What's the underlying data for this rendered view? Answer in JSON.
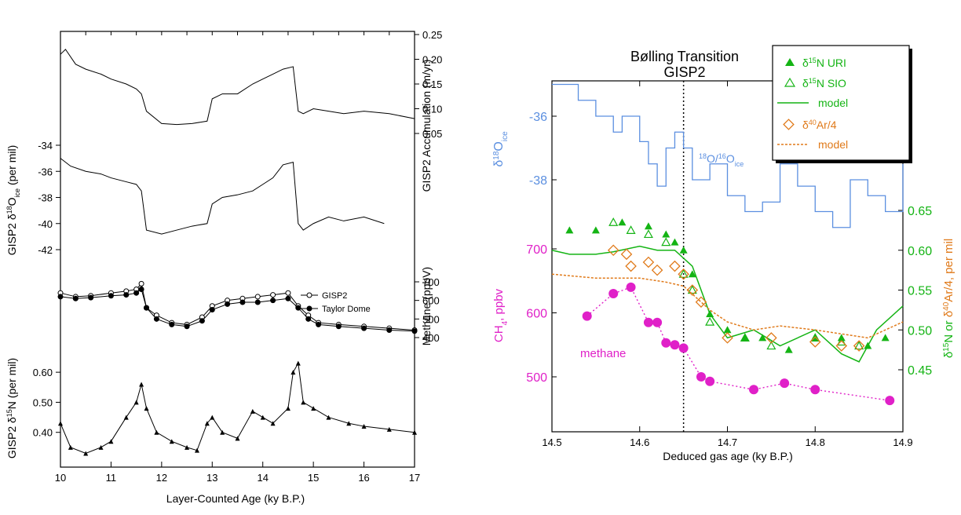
{
  "chart_data": [
    {
      "type": "line",
      "panel": "left",
      "xlabel": "Layer-Counted Age  (ky B.P.)",
      "xlim": [
        10,
        17
      ],
      "xticks": [
        "10",
        "11",
        "12",
        "13",
        "14",
        "15",
        "16",
        "17"
      ],
      "colors": {
        "line": "#000000"
      },
      "subplots": [
        {
          "name": "accumulation",
          "ylabel": "GISP2 Accumulation (m/yr)",
          "ylim": [
            0.05,
            0.25
          ],
          "yticks": [
            "0.25",
            "0.20",
            "0.15",
            "0.10",
            "0.05"
          ],
          "series": [
            {
              "x": [
                10.0,
                10.1,
                10.3,
                10.5,
                10.8,
                11.0,
                11.3,
                11.5,
                11.6,
                11.7,
                12.0,
                12.3,
                12.6,
                12.9,
                13.0,
                13.2,
                13.5,
                13.8,
                14.0,
                14.2,
                14.4,
                14.6,
                14.7,
                14.8,
                15.0,
                15.3,
                15.6,
                16.0,
                16.5,
                17.0
              ],
              "y": [
                0.21,
                0.22,
                0.19,
                0.18,
                0.17,
                0.16,
                0.15,
                0.14,
                0.13,
                0.095,
                0.07,
                0.068,
                0.07,
                0.075,
                0.12,
                0.13,
                0.13,
                0.15,
                0.16,
                0.17,
                0.18,
                0.185,
                0.095,
                0.09,
                0.1,
                0.095,
                0.09,
                0.095,
                0.09,
                0.08
              ]
            }
          ]
        },
        {
          "name": "d18O",
          "ylabel": "GISP2 δ18Oice (per mil)",
          "ylim": [
            -42,
            -34
          ],
          "yticks": [
            "-34",
            "-36",
            "-38",
            "-40",
            "-42"
          ],
          "series": [
            {
              "x": [
                10.0,
                10.2,
                10.5,
                10.8,
                11.0,
                11.3,
                11.5,
                11.6,
                11.7,
                12.0,
                12.3,
                12.6,
                12.9,
                13.0,
                13.2,
                13.5,
                13.8,
                14.0,
                14.2,
                14.4,
                14.6,
                14.7,
                14.8,
                15.0,
                15.3,
                15.6,
                16.0,
                16.4
              ],
              "y": [
                -35,
                -35.6,
                -36,
                -36.2,
                -36.5,
                -36.8,
                -37,
                -37.5,
                -40.5,
                -40.8,
                -40.5,
                -40.2,
                -40,
                -38.5,
                -38,
                -37.8,
                -37.5,
                -37,
                -36.5,
                -35.5,
                -35.3,
                -40,
                -40.5,
                -40,
                -39.5,
                -39.8,
                -39.5,
                -40
              ]
            }
          ]
        },
        {
          "name": "methane",
          "ylabel": "Methane (ppbV)",
          "ylim": [
            400,
            700
          ],
          "yticks": [
            "700",
            "600",
            "500",
            "400"
          ],
          "legend": [
            "GISP2",
            "Taylor Dome"
          ],
          "series": [
            {
              "name": "GISP2",
              "x": [
                10.0,
                10.3,
                10.6,
                11.0,
                11.3,
                11.5,
                11.6,
                11.7,
                11.9,
                12.2,
                12.5,
                12.8,
                13.0,
                13.3,
                13.6,
                13.9,
                14.2,
                14.5,
                14.7,
                14.9,
                15.1,
                15.5,
                16.0,
                16.5,
                17.0
              ],
              "y": [
                640,
                620,
                625,
                640,
                650,
                660,
                690,
                560,
                520,
                480,
                470,
                510,
                570,
                600,
                610,
                620,
                630,
                640,
                570,
                520,
                480,
                470,
                460,
                450,
                440
              ]
            },
            {
              "name": "Taylor Dome",
              "x": [
                10.0,
                10.3,
                10.6,
                11.0,
                11.3,
                11.5,
                11.6,
                11.7,
                11.9,
                12.2,
                12.5,
                12.8,
                13.0,
                13.3,
                13.6,
                13.9,
                14.2,
                14.5,
                14.7,
                14.9,
                15.1,
                15.5,
                16.0,
                16.5,
                17.0
              ],
              "y": [
                620,
                610,
                615,
                625,
                630,
                640,
                660,
                560,
                500,
                470,
                460,
                490,
                550,
                580,
                590,
                590,
                600,
                610,
                560,
                500,
                470,
                460,
                450,
                440,
                435
              ]
            }
          ]
        },
        {
          "name": "d15N",
          "ylabel": "GISP2 δ15N (per mil)",
          "ylim": [
            0.3,
            0.65
          ],
          "yticks": [
            "0.60",
            "0.50",
            "0.40"
          ],
          "series": [
            {
              "x": [
                10.0,
                10.2,
                10.5,
                10.8,
                11.0,
                11.3,
                11.5,
                11.6,
                11.7,
                11.9,
                12.2,
                12.5,
                12.7,
                12.9,
                13.0,
                13.2,
                13.5,
                13.8,
                14.0,
                14.2,
                14.5,
                14.6,
                14.7,
                14.8,
                15.0,
                15.3,
                15.7,
                16.0,
                16.5,
                17.0
              ],
              "y": [
                0.43,
                0.35,
                0.33,
                0.35,
                0.37,
                0.45,
                0.5,
                0.56,
                0.48,
                0.4,
                0.37,
                0.35,
                0.34,
                0.43,
                0.45,
                0.4,
                0.38,
                0.47,
                0.45,
                0.43,
                0.48,
                0.6,
                0.63,
                0.5,
                0.48,
                0.45,
                0.43,
                0.42,
                0.41,
                0.4
              ]
            }
          ]
        }
      ]
    },
    {
      "type": "line",
      "panel": "right",
      "title": "Bølling Transition",
      "subtitle": "GISP2",
      "xlabel": "Deduced gas age (ky B.P.)",
      "xlim": [
        14.5,
        14.9
      ],
      "xticks": [
        "14.5",
        "14.6",
        "14.7",
        "14.8",
        "14.9"
      ],
      "vline_x": 14.65,
      "axes": {
        "left_top": {
          "label": "δ18Oice",
          "ticks": [
            "-36",
            "-38"
          ],
          "color": "#5b8fe0"
        },
        "left_bottom": {
          "label": "CH4, ppbv",
          "ticks": [
            "700",
            "600",
            "500"
          ],
          "color": "#e020c8"
        },
        "right": {
          "label": "δ15N or δ40Ar/4, per mil",
          "ticks": [
            "0.65",
            "0.60",
            "0.55",
            "0.50",
            "0.45"
          ],
          "color_a": "#14b414",
          "color_b": "#e07a1a"
        }
      },
      "legend": [
        "δ15N URI",
        "δ15N SIO",
        "model",
        "δ40Ar/4",
        "model"
      ],
      "annotations": {
        "o_iso": "18O/16Oice",
        "methane": "methane"
      },
      "colors": {
        "o18": "#5b8fe0",
        "ch4": "#e020c8",
        "n15": "#14b414",
        "ar": "#e07a1a"
      },
      "series": [
        {
          "name": "18O/16Oice",
          "x": [
            14.5,
            14.53,
            14.55,
            14.57,
            14.58,
            14.6,
            14.61,
            14.62,
            14.63,
            14.64,
            14.65,
            14.66,
            14.68,
            14.7,
            14.72,
            14.74,
            14.76,
            14.78,
            14.8,
            14.82,
            14.84,
            14.86,
            14.88,
            14.9
          ],
          "y": [
            -35,
            -35.5,
            -36,
            -36.5,
            -36,
            -36.8,
            -37.5,
            -38.2,
            -37,
            -36.5,
            -37,
            -38,
            -37.5,
            -38.5,
            -39,
            -38.7,
            -37.5,
            -38.2,
            -39,
            -39.5,
            -38,
            -38.5,
            -39,
            -37.5
          ]
        },
        {
          "name": "methane",
          "x": [
            14.54,
            14.57,
            14.59,
            14.61,
            14.62,
            14.63,
            14.64,
            14.65,
            14.67,
            14.68,
            14.73,
            14.765,
            14.8,
            14.885
          ],
          "y": [
            595,
            630,
            640,
            585,
            585,
            553,
            550,
            545,
            500,
            493,
            480,
            490,
            480,
            463
          ]
        },
        {
          "name": "δ15N URI",
          "x": [
            14.52,
            14.55,
            14.58,
            14.61,
            14.63,
            14.64,
            14.65,
            14.66,
            14.68,
            14.7,
            14.72,
            14.74,
            14.77,
            14.8,
            14.83,
            14.86,
            14.88
          ],
          "y": [
            0.625,
            0.625,
            0.635,
            0.63,
            0.62,
            0.61,
            0.6,
            0.57,
            0.52,
            0.5,
            0.49,
            0.49,
            0.475,
            0.49,
            0.49,
            0.48,
            0.49
          ]
        },
        {
          "name": "δ15N SIO",
          "x": [
            14.57,
            14.59,
            14.61,
            14.63,
            14.65,
            14.66,
            14.68,
            14.72,
            14.75,
            14.8,
            14.83,
            14.85
          ],
          "y": [
            0.635,
            0.625,
            0.62,
            0.61,
            0.57,
            0.55,
            0.51,
            0.49,
            0.48,
            0.49,
            0.485,
            0.48
          ]
        },
        {
          "name": "model N",
          "x": [
            14.5,
            14.52,
            14.55,
            14.57,
            14.6,
            14.62,
            14.64,
            14.66,
            14.68,
            14.7,
            14.73,
            14.76,
            14.8,
            14.83,
            14.85,
            14.87,
            14.9
          ],
          "y": [
            0.6,
            0.595,
            0.595,
            0.598,
            0.605,
            0.6,
            0.6,
            0.58,
            0.52,
            0.49,
            0.5,
            0.48,
            0.5,
            0.47,
            0.46,
            0.5,
            0.53
          ]
        },
        {
          "name": "δ40Ar/4",
          "x": [
            14.57,
            14.585,
            14.59,
            14.61,
            14.62,
            14.64,
            14.65,
            14.66,
            14.67,
            14.7,
            14.75,
            14.8,
            14.83,
            14.85
          ],
          "y": [
            0.6,
            0.595,
            0.58,
            0.585,
            0.575,
            0.58,
            0.57,
            0.55,
            0.535,
            0.49,
            0.49,
            0.485,
            0.48,
            0.48
          ]
        },
        {
          "name": "model Ar",
          "x": [
            14.5,
            14.55,
            14.6,
            14.63,
            14.65,
            14.68,
            14.7,
            14.73,
            14.76,
            14.8,
            14.83,
            14.86,
            14.9
          ],
          "y": [
            0.57,
            0.565,
            0.565,
            0.56,
            0.555,
            0.525,
            0.51,
            0.5,
            0.505,
            0.5,
            0.495,
            0.49,
            0.51
          ]
        }
      ]
    }
  ],
  "left_panel": {
    "xlabel": "Layer-Counted Age  (ky B.P.)",
    "acc_ylabel": "GISP2 Accumulation (m/yr)",
    "d18_ylabel": "GISP2 δ18Oice (per mil)",
    "ch4_ylabel": "Methane (ppbV)",
    "n15_ylabel": "GISP2 δ15N (per mil)",
    "legend_gisp2": "GISP2",
    "legend_taylor": "Taylor Dome"
  },
  "right_panel": {
    "title": "Bølling Transition",
    "subtitle": "GISP2",
    "xlabel": "Deduced gas age (ky B.P.)",
    "left_top_label": "δ18Oice",
    "left_bottom_label": "CH4, ppbv",
    "right_label": "δ15N or δ40Ar/4, per mil",
    "legend_uri": "δ15N URI",
    "legend_sio": "δ15N SIO",
    "legend_model_n": "model",
    "legend_ar": "δ40Ar/4",
    "legend_model_ar": "model",
    "anno_oiso": "18O/16Oice",
    "anno_methane": "methane"
  }
}
